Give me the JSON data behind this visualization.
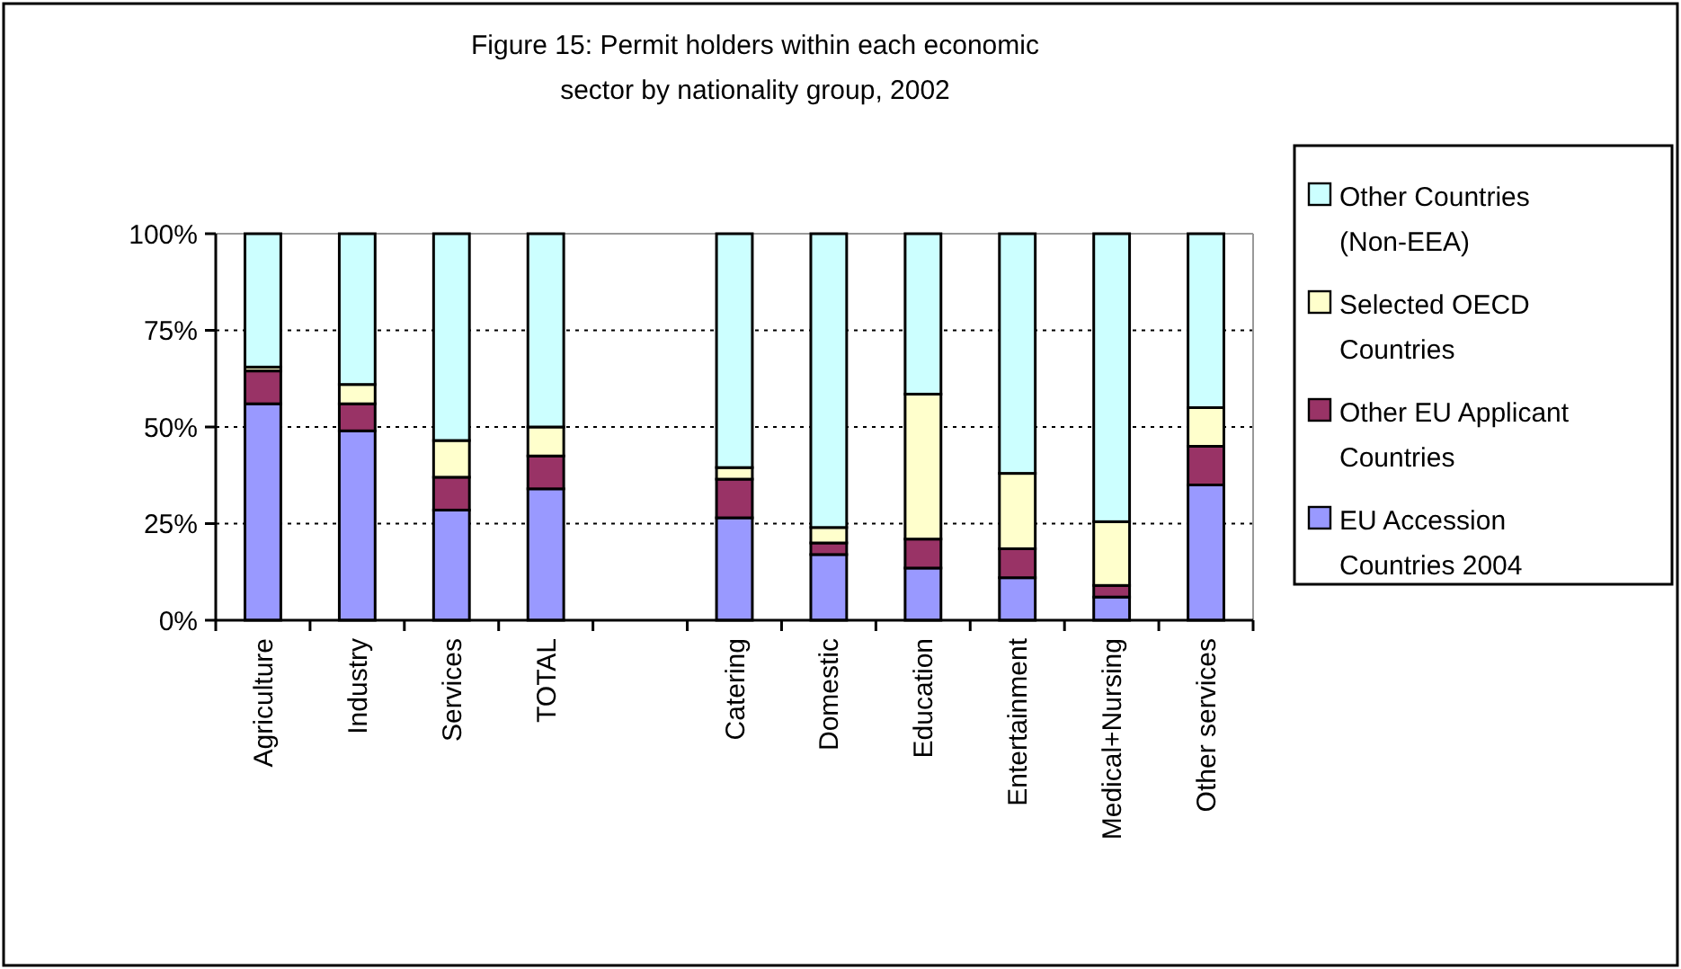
{
  "chart_data": {
    "type": "bar",
    "title": "Figure 15: Permit holders within each economic sector by nationality group, 2002",
    "stacked": true,
    "categories": [
      "Agriculture",
      "Industry",
      "Services",
      "TOTAL",
      null,
      "Catering",
      "Domestic",
      "Education",
      "Entertainment",
      "Medical+Nursing",
      "Other services"
    ],
    "series": [
      {
        "name": "EU Accession Countries 2004",
        "color": "#9999ff",
        "values": [
          56,
          49,
          28.5,
          34,
          null,
          26.5,
          17,
          13.5,
          11,
          6,
          35
        ]
      },
      {
        "name": "Other EU Applicant Countries",
        "color": "#993366",
        "values": [
          8.5,
          7,
          8.5,
          8.5,
          null,
          10,
          3,
          7.5,
          7.5,
          3,
          10
        ]
      },
      {
        "name": "Selected OECD Countries",
        "color": "#ffffcc",
        "values": [
          1,
          5,
          9.5,
          7.5,
          null,
          3,
          4,
          37.5,
          19.5,
          16.5,
          10
        ]
      },
      {
        "name": "Other Countries (Non-EEA)",
        "color": "#ccffff",
        "values": [
          34.5,
          39,
          53.5,
          50,
          null,
          60.5,
          76,
          41.5,
          62,
          74.5,
          45
        ]
      }
    ],
    "ylim": [
      0,
      100
    ],
    "yticks": [
      {
        "value": 0,
        "label": "0%"
      },
      {
        "value": 25,
        "label": "25%"
      },
      {
        "value": 50,
        "label": "50%"
      },
      {
        "value": 75,
        "label": "75%"
      },
      {
        "value": 100,
        "label": "100%"
      }
    ],
    "grid": "y",
    "legend": "right"
  }
}
